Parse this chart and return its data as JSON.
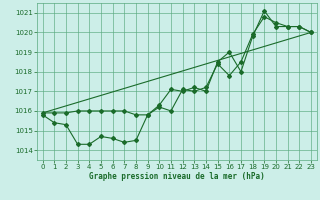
{
  "title": "Graphe pression niveau de la mer (hPa)",
  "bg_color": "#cceee8",
  "grid_color": "#5aaa80",
  "line_color": "#1a6b2a",
  "xlim": [
    -0.5,
    23.5
  ],
  "ylim": [
    1013.5,
    1021.5
  ],
  "xticks": [
    0,
    1,
    2,
    3,
    4,
    5,
    6,
    7,
    8,
    9,
    10,
    11,
    12,
    13,
    14,
    15,
    16,
    17,
    18,
    19,
    20,
    21,
    22,
    23
  ],
  "yticks": [
    1014,
    1015,
    1016,
    1017,
    1018,
    1019,
    1020,
    1021
  ],
  "series1_x": [
    0,
    1,
    2,
    3,
    4,
    5,
    6,
    7,
    8,
    9,
    10,
    11,
    12,
    13,
    14,
    15,
    16,
    17,
    18,
    19,
    20,
    21,
    22,
    23
  ],
  "series1_y": [
    1015.9,
    1015.9,
    1015.9,
    1016.0,
    1016.0,
    1016.0,
    1016.0,
    1016.0,
    1015.8,
    1015.8,
    1016.3,
    1017.1,
    1017.0,
    1017.2,
    1017.0,
    1018.5,
    1019.0,
    1018.0,
    1019.8,
    1021.1,
    1020.3,
    1020.3,
    1020.3,
    1020.0
  ],
  "series2_x": [
    0,
    1,
    2,
    3,
    4,
    5,
    6,
    7,
    8,
    9,
    10,
    11,
    12,
    13,
    14,
    15,
    16,
    17,
    18,
    19,
    20,
    21,
    22,
    23
  ],
  "series2_y": [
    1015.8,
    1015.4,
    1015.3,
    1014.3,
    1014.3,
    1014.7,
    1014.6,
    1014.4,
    1014.5,
    1015.8,
    1016.2,
    1016.0,
    1017.1,
    1017.0,
    1017.2,
    1018.4,
    1017.8,
    1018.5,
    1019.9,
    1020.8,
    1020.5,
    1020.3,
    1020.3,
    1020.0
  ],
  "series3_x": [
    0,
    23
  ],
  "series3_y": [
    1015.9,
    1020.0
  ]
}
